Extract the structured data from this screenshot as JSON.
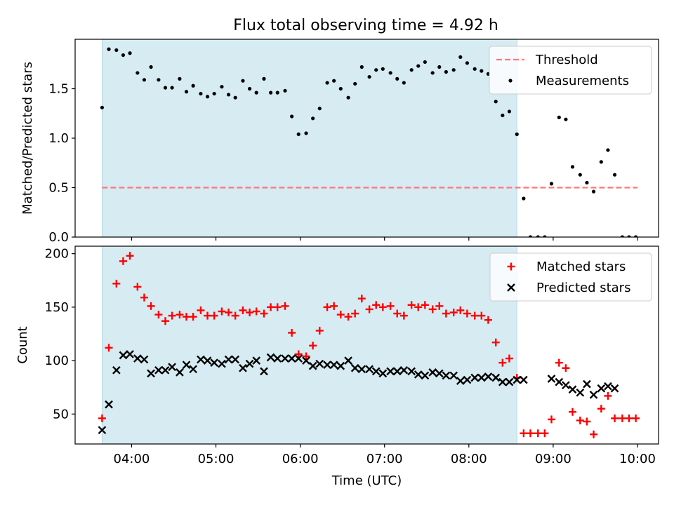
{
  "title": "Flux total observing time = 4.92 h",
  "chart_data": [
    {
      "type": "scatter",
      "ylabel": "Matched/Predicted stars",
      "xlim": [
        3.33,
        10.25
      ],
      "ylim": [
        0,
        2.0
      ],
      "yticks": [
        0.0,
        0.5,
        1.0,
        1.5
      ],
      "ytick_labels": [
        "0.0",
        "0.5",
        "1.0",
        "1.5"
      ],
      "shaded_span": [
        3.65,
        8.57
      ],
      "threshold": {
        "name": "Threshold",
        "value": 0.5,
        "x_range": [
          3.65,
          10.0
        ],
        "color": "#ff7777"
      },
      "legend": "top-right",
      "series": [
        {
          "name": "Measurements",
          "color": "#000000",
          "x": [
            3.65,
            3.73,
            3.82,
            3.9,
            3.98,
            4.07,
            4.15,
            4.23,
            4.32,
            4.4,
            4.48,
            4.57,
            4.65,
            4.73,
            4.82,
            4.9,
            4.98,
            5.07,
            5.15,
            5.23,
            5.32,
            5.4,
            5.48,
            5.57,
            5.65,
            5.73,
            5.82,
            5.9,
            5.98,
            6.07,
            6.15,
            6.23,
            6.32,
            6.4,
            6.48,
            6.57,
            6.65,
            6.73,
            6.82,
            6.9,
            6.98,
            7.07,
            7.15,
            7.23,
            7.32,
            7.4,
            7.48,
            7.57,
            7.65,
            7.73,
            7.82,
            7.9,
            7.98,
            8.07,
            8.15,
            8.23,
            8.32,
            8.4,
            8.48,
            8.57,
            8.65,
            8.73,
            8.82,
            8.9,
            8.98,
            9.07,
            9.15,
            9.23,
            9.32,
            9.4,
            9.48,
            9.57,
            9.65,
            9.73,
            9.82,
            9.9,
            9.98
          ],
          "y": [
            1.31,
            1.9,
            1.89,
            1.84,
            1.86,
            1.66,
            1.59,
            1.72,
            1.59,
            1.51,
            1.51,
            1.6,
            1.47,
            1.53,
            1.45,
            1.42,
            1.45,
            1.52,
            1.44,
            1.41,
            1.58,
            1.5,
            1.46,
            1.6,
            1.46,
            1.46,
            1.48,
            1.22,
            1.04,
            1.05,
            1.2,
            1.3,
            1.56,
            1.58,
            1.5,
            1.41,
            1.55,
            1.72,
            1.62,
            1.69,
            1.7,
            1.66,
            1.6,
            1.56,
            1.69,
            1.73,
            1.77,
            1.66,
            1.72,
            1.67,
            1.69,
            1.82,
            1.76,
            1.7,
            1.68,
            1.65,
            1.37,
            1.23,
            1.27,
            1.04,
            0.39,
            0.0,
            0.0,
            0.0,
            0.54,
            1.21,
            1.19,
            0.71,
            0.63,
            0.55,
            0.46,
            0.76,
            0.88,
            0.63,
            0.0,
            0.0,
            0.0
          ]
        }
      ]
    },
    {
      "type": "scatter",
      "xlabel": "Time (UTC)",
      "ylabel": "Count",
      "xlim": [
        3.33,
        10.25
      ],
      "ylim": [
        22,
        207
      ],
      "yticks": [
        50,
        100,
        150,
        200
      ],
      "ytick_labels": [
        "50",
        "100",
        "150",
        "200"
      ],
      "xticks": [
        4,
        5,
        6,
        7,
        8,
        9,
        10
      ],
      "xtick_labels": [
        "04:00",
        "05:00",
        "06:00",
        "07:00",
        "08:00",
        "09:00",
        "10:00"
      ],
      "shaded_span": [
        3.65,
        8.57
      ],
      "legend": "top-right",
      "series": [
        {
          "name": "Matched stars",
          "marker": "+",
          "color": "#ff0000",
          "x": [
            3.65,
            3.73,
            3.82,
            3.9,
            3.98,
            4.07,
            4.15,
            4.23,
            4.32,
            4.4,
            4.48,
            4.57,
            4.65,
            4.73,
            4.82,
            4.9,
            4.98,
            5.07,
            5.15,
            5.23,
            5.32,
            5.4,
            5.48,
            5.57,
            5.65,
            5.73,
            5.82,
            5.9,
            5.98,
            6.07,
            6.15,
            6.23,
            6.32,
            6.4,
            6.48,
            6.57,
            6.65,
            6.73,
            6.82,
            6.9,
            6.98,
            7.07,
            7.15,
            7.23,
            7.32,
            7.4,
            7.48,
            7.57,
            7.65,
            7.73,
            7.82,
            7.9,
            7.98,
            8.07,
            8.15,
            8.23,
            8.32,
            8.4,
            8.48,
            8.57,
            8.65,
            8.73,
            8.82,
            8.9,
            8.98,
            9.07,
            9.15,
            9.23,
            9.32,
            9.4,
            9.48,
            9.57,
            9.65,
            9.73,
            9.82,
            9.9,
            9.98
          ],
          "y": [
            46,
            112,
            172,
            193,
            198,
            169,
            159,
            151,
            143,
            137,
            142,
            143,
            141,
            141,
            147,
            142,
            142,
            146,
            145,
            142,
            147,
            145,
            146,
            144,
            150,
            150,
            151,
            126,
            106,
            104,
            114,
            128,
            150,
            151,
            143,
            141,
            144,
            158,
            148,
            152,
            150,
            151,
            144,
            142,
            152,
            150,
            152,
            148,
            151,
            144,
            145,
            147,
            144,
            142,
            142,
            138,
            117,
            98,
            102,
            84,
            32,
            32,
            32,
            32,
            45,
            98,
            93,
            52,
            44,
            43,
            31,
            55,
            67,
            46,
            46,
            46,
            46
          ]
        },
        {
          "name": "Predicted stars",
          "marker": "x",
          "color": "#000000",
          "x": [
            3.65,
            3.73,
            3.82,
            3.9,
            3.98,
            4.07,
            4.15,
            4.23,
            4.32,
            4.4,
            4.48,
            4.57,
            4.65,
            4.73,
            4.82,
            4.9,
            4.98,
            5.07,
            5.15,
            5.23,
            5.32,
            5.4,
            5.48,
            5.57,
            5.65,
            5.73,
            5.82,
            5.9,
            5.98,
            6.07,
            6.15,
            6.23,
            6.32,
            6.4,
            6.48,
            6.57,
            6.65,
            6.73,
            6.82,
            6.9,
            6.98,
            7.07,
            7.15,
            7.23,
            7.32,
            7.4,
            7.48,
            7.57,
            7.65,
            7.73,
            7.82,
            7.9,
            7.98,
            8.07,
            8.15,
            8.23,
            8.32,
            8.4,
            8.48,
            8.57,
            8.65,
            8.98,
            9.07,
            9.15,
            9.23,
            9.32,
            9.4,
            9.48,
            9.57,
            9.65,
            9.73
          ],
          "y": [
            35,
            59,
            91,
            105,
            106,
            102,
            101,
            88,
            91,
            91,
            94,
            89,
            96,
            92,
            101,
            100,
            98,
            97,
            101,
            101,
            93,
            97,
            100,
            90,
            103,
            102,
            102,
            102,
            102,
            100,
            95,
            97,
            96,
            96,
            95,
            100,
            93,
            92,
            92,
            90,
            88,
            90,
            90,
            91,
            90,
            87,
            86,
            89,
            88,
            86,
            86,
            81,
            82,
            84,
            84,
            85,
            84,
            80,
            80,
            82,
            82,
            83,
            80,
            77,
            73,
            70,
            78,
            68,
            74,
            76,
            74
          ]
        }
      ]
    }
  ]
}
